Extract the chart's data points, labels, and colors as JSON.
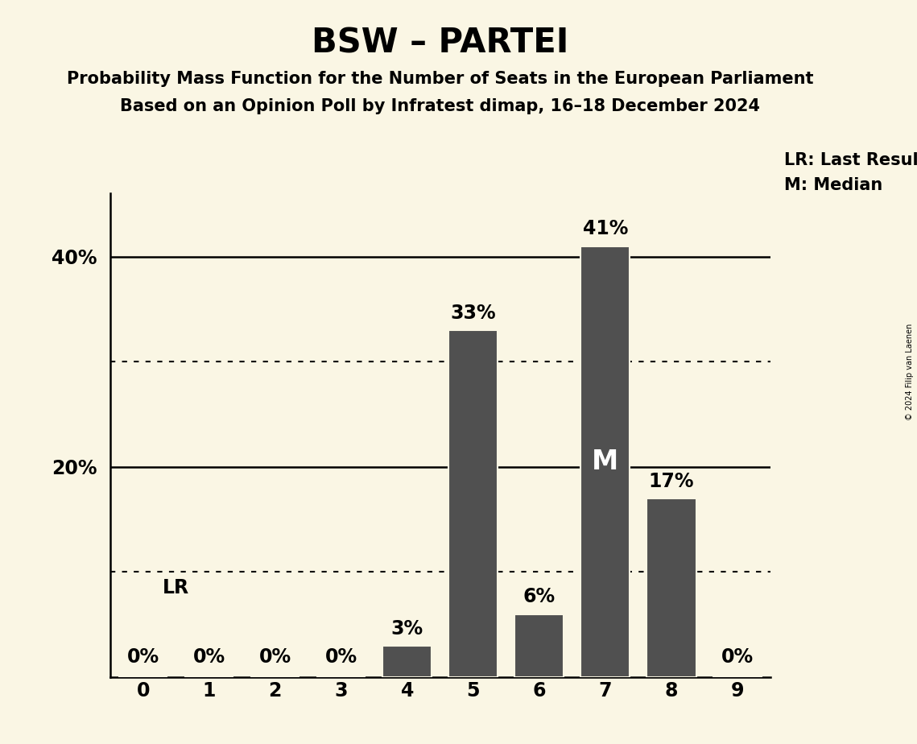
{
  "title": "BSW – PARTEI",
  "subtitle1": "Probability Mass Function for the Number of Seats in the European Parliament",
  "subtitle2": "Based on an Opinion Poll by Infratest dimap, 16–18 December 2024",
  "copyright": "© 2024 Filip van Laenen",
  "categories": [
    0,
    1,
    2,
    3,
    4,
    5,
    6,
    7,
    8,
    9
  ],
  "values": [
    0,
    0,
    0,
    0,
    3,
    33,
    6,
    41,
    17,
    0
  ],
  "bar_color": "#505050",
  "background_color": "#faf6e4",
  "bar_edge_color": "#faf6e4",
  "median_seat": 7,
  "lr_seat": 0,
  "lr_label": "LR",
  "median_label": "M",
  "legend_lr": "LR: Last Result",
  "legend_m": "M: Median",
  "dotted_lines": [
    10,
    30
  ],
  "solid_lines": [
    20,
    40
  ],
  "ylim_max": 46,
  "xlim": [
    -0.5,
    9.5
  ],
  "bar_width": 0.75,
  "title_fontsize": 30,
  "subtitle_fontsize": 15,
  "tick_fontsize": 17,
  "annotation_fontsize": 17,
  "median_fontsize": 24,
  "legend_fontsize": 15
}
